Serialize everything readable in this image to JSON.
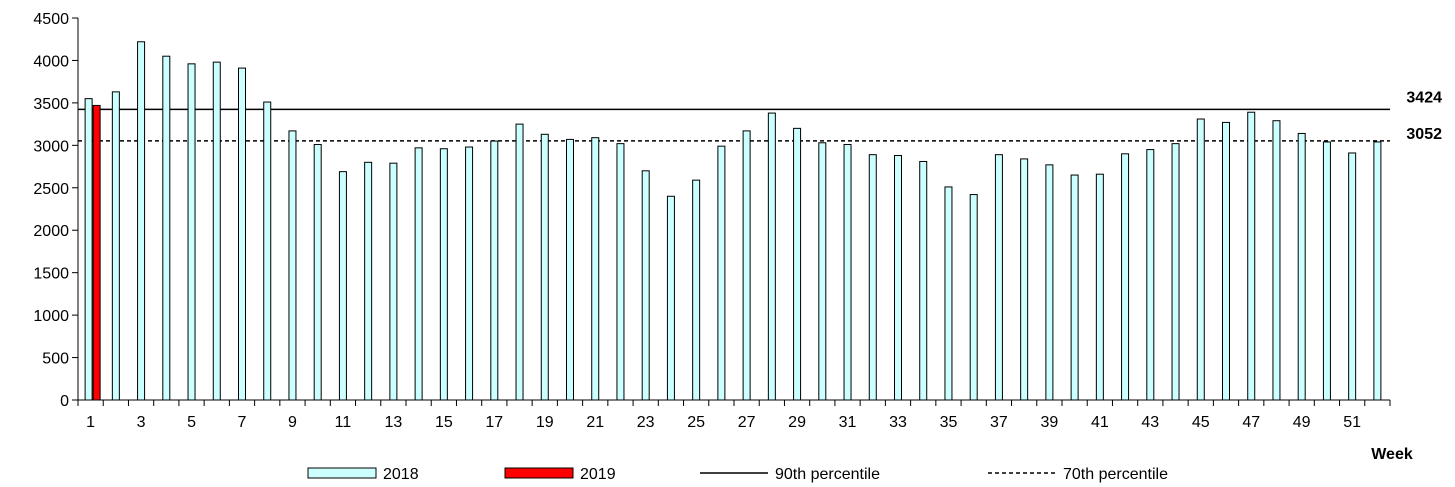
{
  "chart_data": {
    "type": "bar",
    "xlabel": "Week",
    "ylabel": "",
    "ylim": [
      0,
      4500
    ],
    "y_ticks": [
      "0",
      "500",
      "1000",
      "1500",
      "2000",
      "2500",
      "3000",
      "3500",
      "4000",
      "4500"
    ],
    "x_tick_labels": [
      "1",
      "3",
      "5",
      "7",
      "9",
      "11",
      "13",
      "15",
      "17",
      "19",
      "21",
      "23",
      "25",
      "27",
      "29",
      "31",
      "33",
      "35",
      "37",
      "39",
      "41",
      "43",
      "45",
      "47",
      "49",
      "51"
    ],
    "weeks": [
      1,
      2,
      3,
      4,
      5,
      6,
      7,
      8,
      9,
      10,
      11,
      12,
      13,
      14,
      15,
      16,
      17,
      18,
      19,
      20,
      21,
      22,
      23,
      24,
      25,
      26,
      27,
      28,
      29,
      30,
      31,
      32,
      33,
      34,
      35,
      36,
      37,
      38,
      39,
      40,
      41,
      42,
      43,
      44,
      45,
      46,
      47,
      48,
      49,
      50,
      51,
      52
    ],
    "series": [
      {
        "name": "2018",
        "color": "#ccffff",
        "values": [
          3550,
          3630,
          4220,
          4050,
          3960,
          3980,
          3910,
          3510,
          3170,
          3010,
          2690,
          2800,
          2790,
          2970,
          2960,
          2980,
          3050,
          3250,
          3130,
          3070,
          3090,
          3020,
          2700,
          2400,
          2590,
          2990,
          3170,
          3380,
          3200,
          3030,
          3010,
          2890,
          2880,
          2810,
          2510,
          2420,
          2890,
          2840,
          2770,
          2650,
          2660,
          2900,
          2950,
          3020,
          3310,
          3270,
          3390,
          3290,
          3140,
          3040,
          2910,
          3040
        ]
      },
      {
        "name": "2019",
        "color": "#ff0000",
        "values": [
          3470
        ]
      }
    ],
    "reference_lines": [
      {
        "name": "90th percentile",
        "value": 3424,
        "label": "3424",
        "style": "solid"
      },
      {
        "name": "70th percentile",
        "value": 3052,
        "label": "3052",
        "style": "dashed"
      }
    ],
    "legend": {
      "placement": "bottom",
      "items": [
        "2018",
        "2019",
        "90th percentile",
        "70th percentile"
      ]
    },
    "grid": false
  }
}
